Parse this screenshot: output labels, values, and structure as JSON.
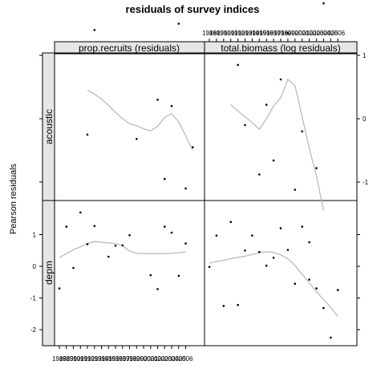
{
  "chart_data": {
    "type": "scatter",
    "title": "residuals of survey indices",
    "ylabel": "Pearson residuals",
    "ylim": [
      -2.5,
      2.0
    ],
    "column_headers": [
      "prop.recruits (residuals)",
      "total.biomass (log residuals)"
    ],
    "row_headers": [
      "acoustic",
      "depm"
    ],
    "x_tick_labels": [
      "1988",
      "1989",
      "1990",
      "1991",
      "1992",
      "1993",
      "1994",
      "1995",
      "1996",
      "1997",
      "1998",
      "1999",
      "2000",
      "2001",
      "2002",
      "2003",
      "2004",
      "2005",
      "2006"
    ],
    "y_ticks_left": [
      "1",
      "0",
      "-1",
      "-2"
    ],
    "y_ticks_right": [
      "1",
      "0",
      "-1",
      "-2"
    ],
    "panels": [
      {
        "row": "acoustic",
        "column": "prop.recruits (residuals)",
        "x": [
          1992,
          1993,
          1999,
          2002,
          2003,
          2004,
          2005,
          2006,
          2007
        ],
        "y": [
          -0.25,
          1.4,
          -0.32,
          0.3,
          -0.95,
          0.2,
          1.5,
          -1.1,
          -0.45
        ],
        "smooth_x": [
          1992,
          1993,
          1994,
          1995,
          1996,
          1997,
          1998,
          1999,
          2000,
          2001,
          2002,
          2003,
          2004,
          2005,
          2006,
          2007
        ],
        "smooth_y": [
          0.45,
          0.39,
          0.31,
          0.21,
          0.1,
          0.0,
          -0.08,
          -0.11,
          -0.16,
          -0.19,
          -0.12,
          0.02,
          0.08,
          -0.05,
          -0.27,
          -0.5
        ]
      },
      {
        "row": "acoustic",
        "column": "total.biomass (log residuals)",
        "x": [
          1992,
          1993,
          1995,
          1996,
          1997,
          1998,
          1999,
          2000,
          2001,
          2002,
          2003,
          2004
        ],
        "y": [
          0.85,
          -0.1,
          -0.88,
          0.22,
          -0.66,
          0.62,
          1.35,
          -1.12,
          -0.2,
          -1.95,
          -0.78,
          1.82
        ],
        "smooth_x": [
          1991,
          1992,
          1993,
          1994,
          1995,
          1996,
          1997,
          1998,
          1999,
          2000,
          2001,
          2002,
          2003,
          2004
        ],
        "smooth_y": [
          0.22,
          0.12,
          0.03,
          -0.06,
          -0.17,
          0.0,
          0.2,
          0.33,
          0.62,
          0.52,
          0.03,
          -0.47,
          -0.9,
          -1.45
        ]
      },
      {
        "row": "depm",
        "column": "prop.recruits (residuals)",
        "x": [
          1988,
          1989,
          1990,
          1991,
          1992,
          1993,
          1995,
          1996,
          1997,
          1998,
          2001,
          2002,
          2003,
          2004,
          2005,
          2006
        ],
        "y": [
          -0.7,
          1.25,
          -0.05,
          1.7,
          0.7,
          1.27,
          0.3,
          0.65,
          0.66,
          0.98,
          -0.28,
          -0.72,
          1.25,
          1.06,
          -0.3,
          0.72
        ],
        "smooth_x": [
          1988,
          1989,
          1990,
          1991,
          1992,
          1993,
          1994,
          1995,
          1996,
          1997,
          1998,
          1999,
          2000,
          2001,
          2002,
          2003,
          2004,
          2005,
          2006
        ],
        "smooth_y": [
          0.28,
          0.4,
          0.52,
          0.62,
          0.72,
          0.78,
          0.76,
          0.74,
          0.72,
          0.65,
          0.48,
          0.41,
          0.4,
          0.4,
          0.4,
          0.4,
          0.41,
          0.43,
          0.46
        ]
      },
      {
        "row": "depm",
        "column": "total.biomass (log residuals)",
        "x": [
          1988,
          1989,
          1990,
          1991,
          1992,
          1993,
          1994,
          1995,
          1996,
          1997,
          1998,
          1999,
          2000,
          2001,
          2002,
          2003,
          2004,
          2005,
          2006
        ],
        "y": [
          -0.02,
          0.97,
          -1.25,
          1.4,
          -1.22,
          0.5,
          0.97,
          0.45,
          0.02,
          0.27,
          1.2,
          0.52,
          -0.55,
          1.25,
          -0.42,
          -0.7,
          -1.32,
          -2.25,
          -0.75
        ],
        "smooth_x": [
          1988,
          1989,
          1990,
          1991,
          1992,
          1993,
          1994,
          1995,
          1996,
          1997,
          1998,
          1999,
          2000,
          2001,
          2002,
          2003,
          2004,
          2005,
          2006
        ],
        "smooth_y": [
          0.1,
          0.15,
          0.19,
          0.24,
          0.28,
          0.32,
          0.37,
          0.43,
          0.46,
          0.44,
          0.36,
          0.24,
          0.02,
          -0.25,
          -0.52,
          -0.8,
          -1.05,
          -1.3,
          -1.58
        ]
      }
    ],
    "grid": false,
    "legend": "none",
    "colors": {
      "points": "#000000",
      "smoother": "#bbbbbb",
      "strip_background": "#e6e6e6",
      "background": "#ffffff"
    }
  }
}
